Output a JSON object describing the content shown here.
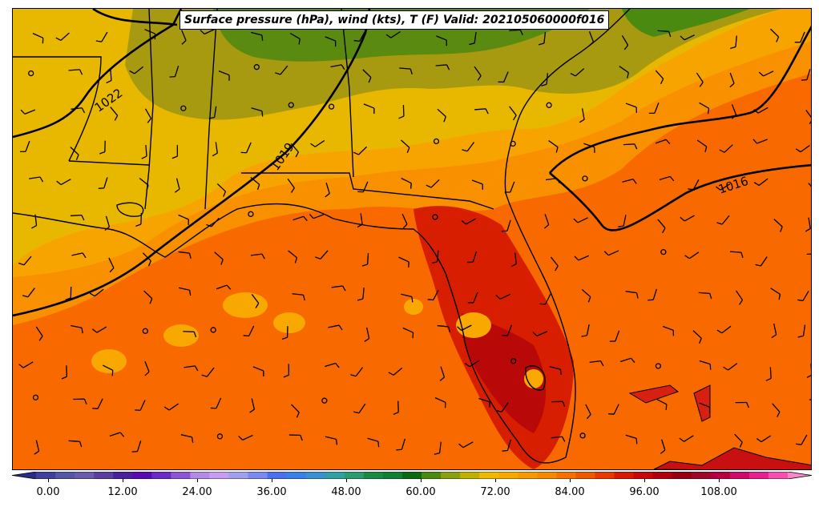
{
  "title": "Surface pressure (hPa), wind (kts), T (F) Valid: 202105060000f016",
  "isobar_labels": [
    "1022",
    "1019",
    "1016"
  ],
  "colorbar": {
    "ticks": [
      "0.00",
      "12.00",
      "24.00",
      "36.00",
      "48.00",
      "60.00",
      "72.00",
      "84.00",
      "96.00",
      "108.00"
    ],
    "colors": [
      "#2b2b8c",
      "#3f3f9e",
      "#5555a8",
      "#6a5aaa",
      "#5a3fa0",
      "#4a1fa0",
      "#5a0ab0",
      "#6a2ac8",
      "#8a55d8",
      "#b48ae8",
      "#c89cf0",
      "#a0a0f0",
      "#7a8af0",
      "#4a70f0",
      "#3a80e8",
      "#3a90d0",
      "#30a0a0",
      "#2a9a70",
      "#1a8a40",
      "#108030",
      "#0a6a10",
      "#4a8a10",
      "#8aa010",
      "#c0b000",
      "#f0b800",
      "#f8a800",
      "#f89800",
      "#f88800",
      "#f87000",
      "#f05800",
      "#e83800",
      "#d81800",
      "#c80808",
      "#b00010",
      "#980010",
      "#a00828",
      "#b80040",
      "#d00868",
      "#e82090",
      "#f850b0",
      "#f888c8"
    ]
  }
}
